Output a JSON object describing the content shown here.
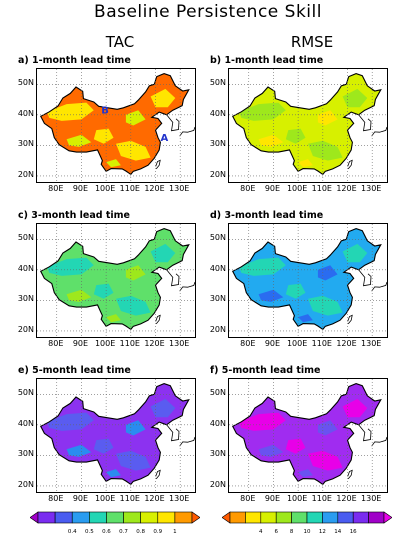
{
  "figure": {
    "title": "Baseline Persistence Skill",
    "columns": [
      "TAC",
      "RMSE"
    ]
  },
  "axes": {
    "lat_ticks": [
      "20N",
      "30N",
      "40N",
      "50N"
    ],
    "lon_ticks": [
      "80E",
      "90E",
      "100E",
      "110E",
      "120E",
      "130E"
    ],
    "lat_range": [
      18,
      55
    ],
    "lon_range": [
      72,
      136
    ]
  },
  "panels": [
    {
      "label": "a)  1-month lead time",
      "colors": {
        "base": "#ff6a00",
        "patch": "#ffe600",
        "accent": "#d7f000"
      },
      "annotations": [
        "B",
        "A"
      ]
    },
    {
      "label": "b)  1-month lead time",
      "colors": {
        "base": "#d7f000",
        "patch": "#9ee81c",
        "accent": "#ffe600"
      },
      "annotations": []
    },
    {
      "label": "c)  3-month lead time",
      "colors": {
        "base": "#5fe06a",
        "patch": "#23d6b4",
        "accent": "#9ee81c"
      },
      "annotations": []
    },
    {
      "label": "d)  3-month lead time",
      "colors": {
        "base": "#22aaf0",
        "patch": "#23d6b4",
        "accent": "#2a6cf0"
      },
      "annotations": []
    },
    {
      "label": "e)  5-month lead time",
      "colors": {
        "base": "#8c32f0",
        "patch": "#5a5cf0",
        "accent": "#2a8cf0"
      },
      "annotations": []
    },
    {
      "label": "f)  5-month lead time",
      "colors": {
        "base": "#a02cf0",
        "patch": "#e800e8",
        "accent": "#6a52f0"
      },
      "annotations": []
    }
  ],
  "colorbars": [
    {
      "labels": [
        "0.4",
        "0.5",
        "0.6",
        "0.7",
        "0.8",
        "0.9",
        "1"
      ],
      "colors": [
        "#a000c8",
        "#7a2cf0",
        "#4a5cf0",
        "#2a9cf0",
        "#23d6b4",
        "#5fe06a",
        "#9ee81c",
        "#d7f000",
        "#ffe600",
        "#ff9a00",
        "#ff5a00"
      ]
    },
    {
      "labels": [
        "4",
        "6",
        "8",
        "10",
        "12",
        "14",
        "16"
      ],
      "colors": [
        "#ff5a00",
        "#ff9a00",
        "#ffe600",
        "#d7f000",
        "#9ee81c",
        "#5fe06a",
        "#23d6b4",
        "#2a9cf0",
        "#4a5cf0",
        "#7a2cf0",
        "#a000c8",
        "#e800e8"
      ]
    }
  ]
}
